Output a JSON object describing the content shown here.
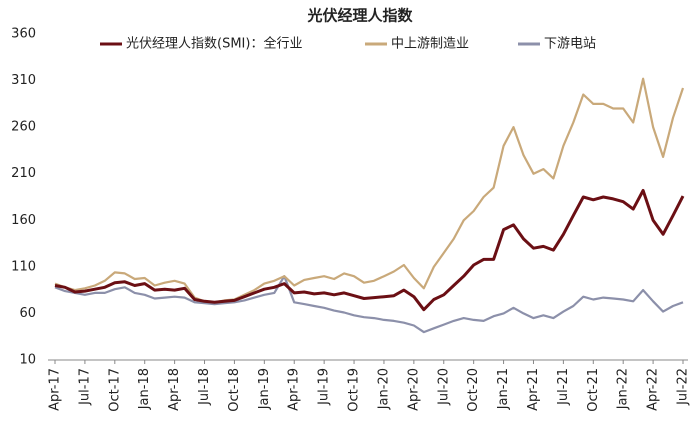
{
  "chart_data": {
    "type": "line",
    "title": "光伏经理人指数",
    "categories": [
      "Apr-17",
      null,
      null,
      "Jul-17",
      null,
      null,
      "Oct-17",
      null,
      null,
      "Jan-18",
      null,
      null,
      "Apr-18",
      null,
      null,
      "Jul-18",
      null,
      null,
      "Oct-18",
      null,
      null,
      "Jan-19",
      null,
      null,
      "Apr-19",
      null,
      null,
      "Jul-19",
      null,
      null,
      "Oct-19",
      null,
      null,
      "Jan-20",
      null,
      null,
      "Apr-20",
      null,
      null,
      "Jul-20",
      null,
      null,
      "Oct-20",
      null,
      null,
      "Jan-21",
      null,
      null,
      "Apr-21",
      null,
      null,
      "Jul-21",
      null,
      null,
      "Oct-21",
      null,
      null,
      "Jan-22",
      null,
      null,
      "Apr-22",
      null,
      null,
      "Jul-22"
    ],
    "series": [
      {
        "name": "光伏经理人指数(SMI)：全行业",
        "color": "#6b0f14",
        "values": [
          90,
          88,
          83,
          84,
          86,
          88,
          93,
          94,
          90,
          92,
          85,
          86,
          85,
          87,
          75,
          73,
          72,
          73,
          74,
          78,
          82,
          86,
          88,
          92,
          82,
          83,
          81,
          82,
          80,
          82,
          79,
          76,
          77,
          78,
          79,
          85,
          78,
          64,
          75,
          80,
          90,
          100,
          112,
          118,
          118,
          150,
          155,
          140,
          130,
          132,
          128,
          145,
          165,
          185,
          182,
          185,
          183,
          180,
          172,
          192,
          160,
          145,
          165,
          186
        ]
      },
      {
        "name": "中上游制造业",
        "color": "#c9a97a",
        "values": [
          92,
          88,
          85,
          87,
          90,
          95,
          104,
          103,
          97,
          98,
          90,
          93,
          95,
          92,
          77,
          73,
          72,
          74,
          75,
          80,
          85,
          92,
          95,
          100,
          90,
          96,
          98,
          100,
          97,
          103,
          100,
          93,
          95,
          100,
          105,
          112,
          98,
          87,
          110,
          125,
          140,
          160,
          170,
          185,
          195,
          240,
          260,
          230,
          210,
          215,
          205,
          240,
          265,
          295,
          285,
          285,
          280,
          280,
          265,
          312,
          260,
          228,
          270,
          302
        ]
      },
      {
        "name": "下游电站",
        "color": "#8c90aa",
        "values": [
          88,
          84,
          82,
          80,
          82,
          82,
          86,
          88,
          82,
          80,
          76,
          77,
          78,
          77,
          72,
          71,
          70,
          71,
          72,
          74,
          77,
          80,
          82,
          100,
          72,
          70,
          68,
          66,
          63,
          61,
          58,
          56,
          55,
          53,
          52,
          50,
          47,
          40,
          44,
          48,
          52,
          55,
          53,
          52,
          57,
          60,
          66,
          60,
          55,
          58,
          55,
          62,
          68,
          78,
          75,
          77,
          76,
          75,
          73,
          85,
          73,
          62,
          68,
          72
        ]
      }
    ],
    "ylim": [
      10,
      360
    ],
    "yticks": [
      10,
      60,
      110,
      160,
      210,
      260,
      310,
      360
    ],
    "grid": false
  }
}
